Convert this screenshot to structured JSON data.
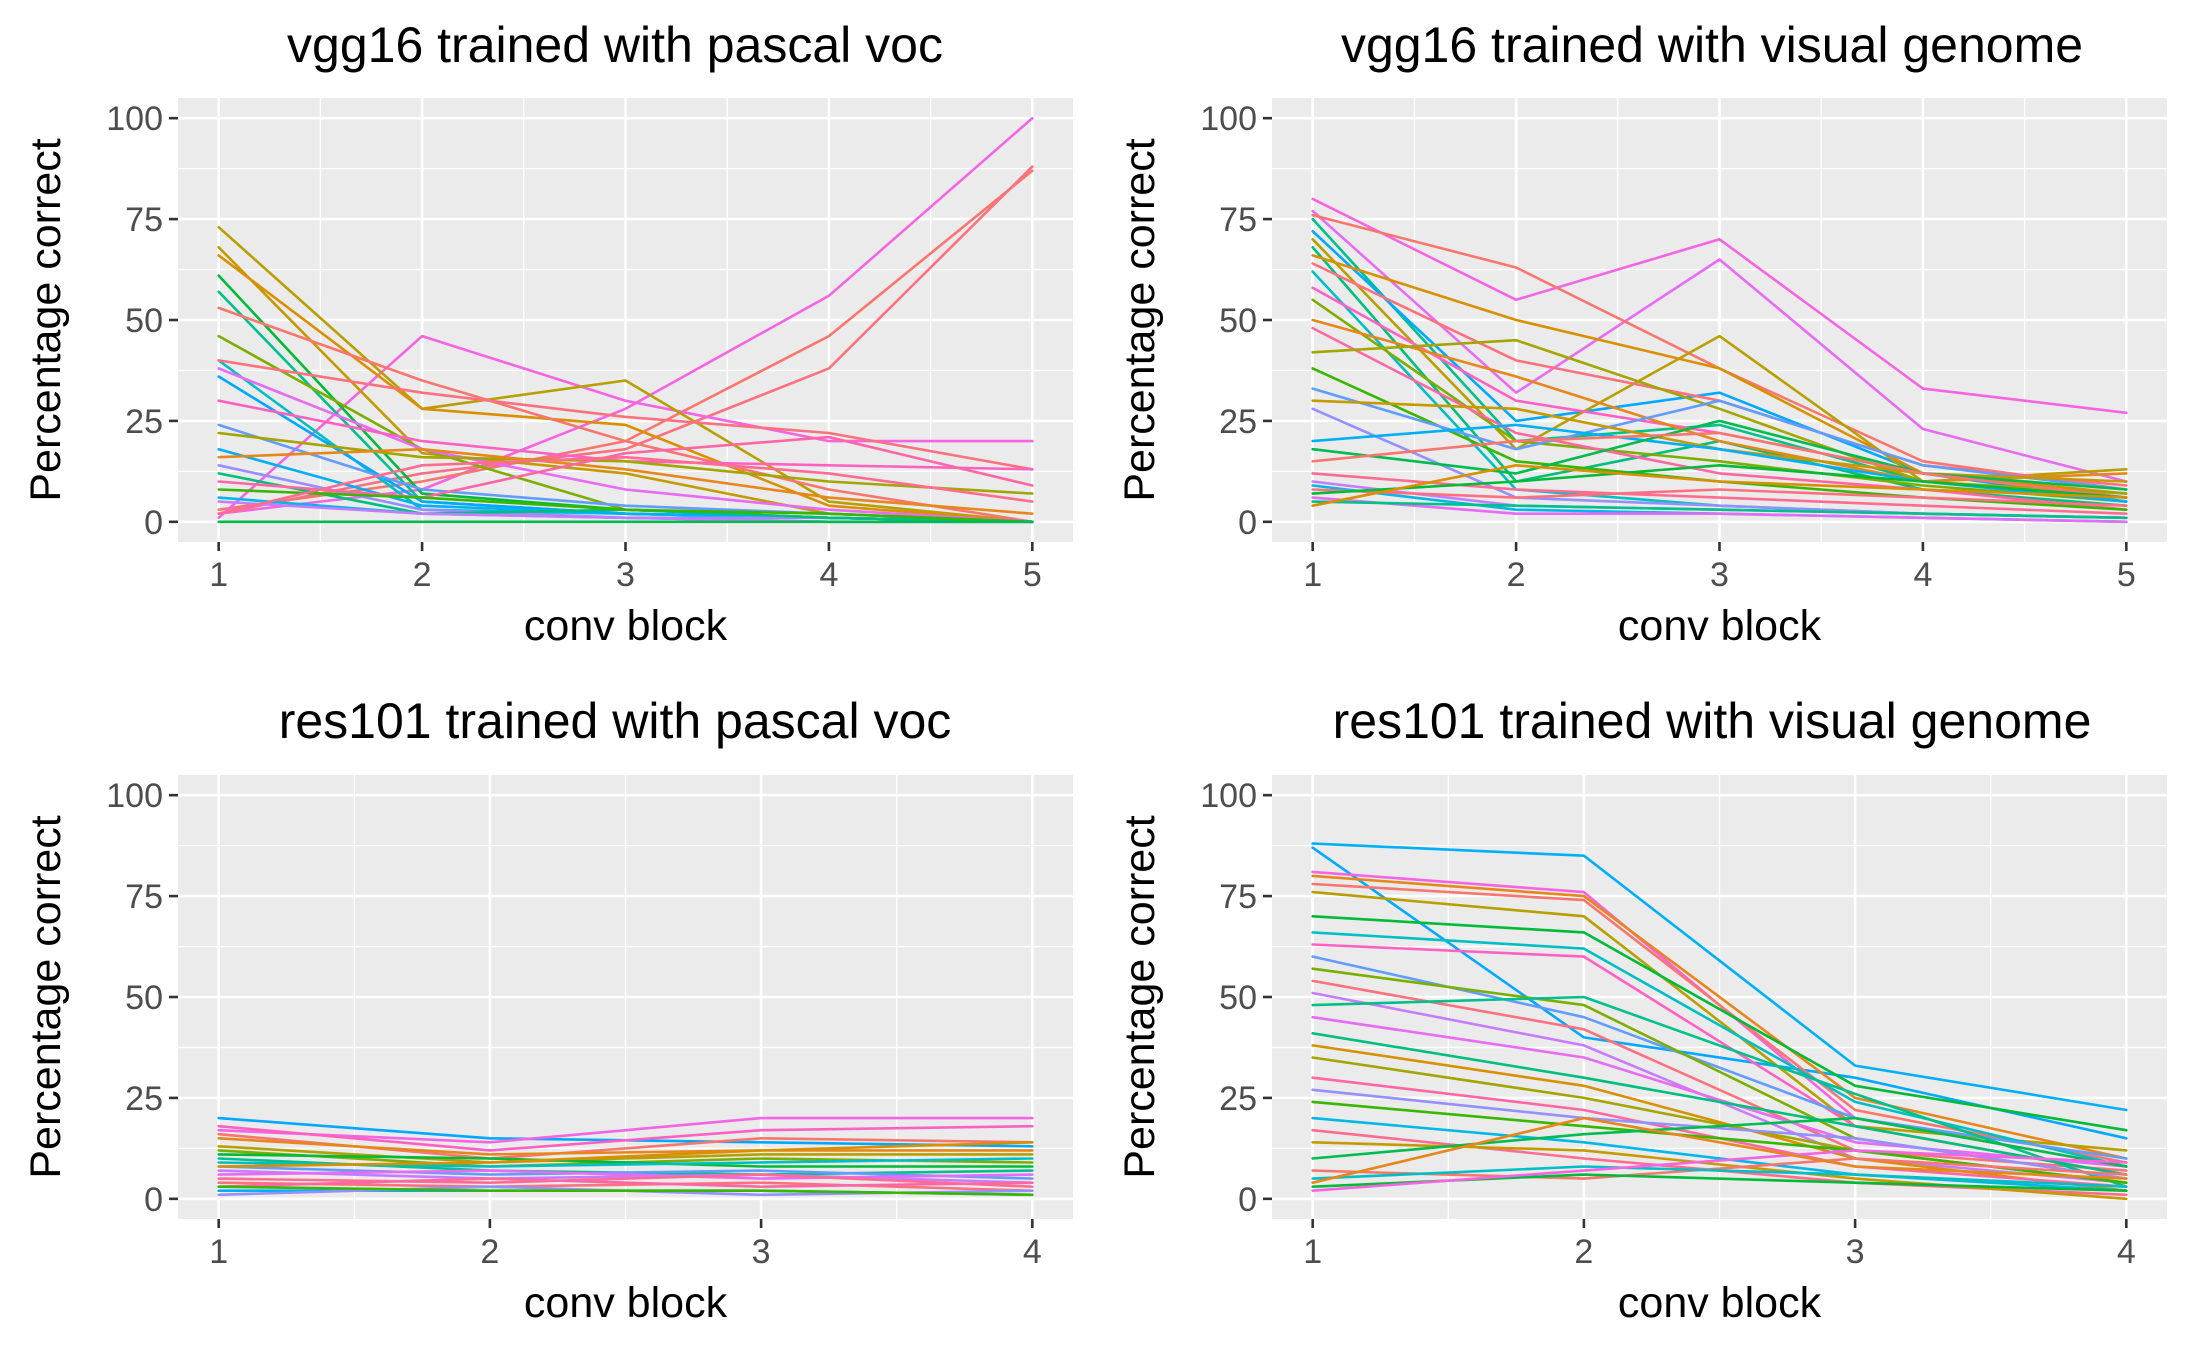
{
  "chart_data": [
    {
      "type": "line",
      "title": "vgg16 trained with pascal voc",
      "xlabel": "conv block",
      "ylabel": "Percentage correct",
      "x": [
        1,
        2,
        3,
        4,
        5
      ],
      "xlim": [
        1,
        5
      ],
      "ylim": [
        0,
        100
      ],
      "yticks": [
        0,
        25,
        50,
        75,
        100
      ],
      "grid": true,
      "legend": "none",
      "series": [
        {
          "color": "#f564e3",
          "values": [
            2,
            8,
            28,
            56,
            100
          ]
        },
        {
          "color": "#f8766d",
          "values": [
            3,
            10,
            20,
            46,
            87
          ]
        },
        {
          "color": "#fc717f",
          "values": [
            2,
            12,
            18,
            38,
            88
          ]
        },
        {
          "color": "#f564e3",
          "values": [
            1,
            46,
            30,
            20,
            20
          ]
        },
        {
          "color": "#b79f00",
          "values": [
            73,
            28,
            35,
            5,
            0
          ]
        },
        {
          "color": "#c49a00",
          "values": [
            68,
            17,
            12,
            2,
            0
          ]
        },
        {
          "color": "#d89000",
          "values": [
            66,
            28,
            24,
            4,
            0
          ]
        },
        {
          "color": "#00ba38",
          "values": [
            61,
            7,
            3,
            1,
            0
          ]
        },
        {
          "color": "#00c08b",
          "values": [
            57,
            5,
            2,
            1,
            0
          ]
        },
        {
          "color": "#f8766d",
          "values": [
            53,
            35,
            20,
            8,
            0
          ]
        },
        {
          "color": "#7cae00",
          "values": [
            46,
            18,
            3,
            1,
            0
          ]
        },
        {
          "color": "#00bfc4",
          "values": [
            40,
            3,
            2,
            1,
            0
          ]
        },
        {
          "color": "#fc717f",
          "values": [
            40,
            32,
            26,
            22,
            13
          ]
        },
        {
          "color": "#e76bf3",
          "values": [
            38,
            18,
            8,
            3,
            0
          ]
        },
        {
          "color": "#00a9ff",
          "values": [
            36,
            5,
            2,
            1,
            0
          ]
        },
        {
          "color": "#ff61c3",
          "values": [
            30,
            20,
            15,
            14,
            13
          ]
        },
        {
          "color": "#619cff",
          "values": [
            24,
            8,
            4,
            2,
            0
          ]
        },
        {
          "color": "#a3a500",
          "values": [
            22,
            16,
            15,
            10,
            7
          ]
        },
        {
          "color": "#00b0f6",
          "values": [
            18,
            4,
            2,
            1,
            0
          ]
        },
        {
          "color": "#e7861b",
          "values": [
            16,
            18,
            13,
            6,
            2
          ]
        },
        {
          "color": "#9590ff",
          "values": [
            14,
            3,
            1,
            1,
            0
          ]
        },
        {
          "color": "#00bf7d",
          "values": [
            12,
            2,
            3,
            1,
            0
          ]
        },
        {
          "color": "#ff67a4",
          "values": [
            10,
            6,
            17,
            21,
            9
          ]
        },
        {
          "color": "#39b600",
          "values": [
            8,
            6,
            3,
            2,
            0
          ]
        },
        {
          "color": "#00b8e7",
          "values": [
            6,
            2,
            1,
            0,
            0
          ]
        },
        {
          "color": "#c77cff",
          "values": [
            5,
            2,
            1,
            0,
            0
          ]
        },
        {
          "color": "#00bb4e",
          "values": [
            0,
            0,
            0,
            0,
            0
          ]
        },
        {
          "color": "#ff6c91",
          "values": [
            2,
            14,
            16,
            12,
            5
          ]
        }
      ]
    },
    {
      "type": "line",
      "title": "vgg16 trained with visual genome",
      "xlabel": "conv block",
      "ylabel": "Percentage correct",
      "x": [
        1,
        2,
        3,
        4,
        5
      ],
      "xlim": [
        1,
        5
      ],
      "ylim": [
        0,
        100
      ],
      "yticks": [
        0,
        25,
        50,
        75,
        100
      ],
      "grid": true,
      "legend": "none",
      "series": [
        {
          "color": "#f564e3",
          "values": [
            80,
            55,
            70,
            33,
            27
          ]
        },
        {
          "color": "#e76bf3",
          "values": [
            77,
            32,
            65,
            23,
            10
          ]
        },
        {
          "color": "#f8766d",
          "values": [
            76,
            63,
            38,
            15,
            8
          ]
        },
        {
          "color": "#00c08b",
          "values": [
            75,
            20,
            24,
            10,
            6
          ]
        },
        {
          "color": "#00a9ff",
          "values": [
            72,
            25,
            32,
            12,
            5
          ]
        },
        {
          "color": "#b79f00",
          "values": [
            70,
            18,
            46,
            10,
            13
          ]
        },
        {
          "color": "#00bf7d",
          "values": [
            68,
            10,
            20,
            8,
            4
          ]
        },
        {
          "color": "#d89000",
          "values": [
            66,
            50,
            38,
            12,
            7
          ]
        },
        {
          "color": "#fc717f",
          "values": [
            64,
            40,
            30,
            14,
            9
          ]
        },
        {
          "color": "#00bfc4",
          "values": [
            62,
            8,
            4,
            2,
            1
          ]
        },
        {
          "color": "#ff61c3",
          "values": [
            58,
            30,
            22,
            12,
            6
          ]
        },
        {
          "color": "#7cae00",
          "values": [
            55,
            20,
            15,
            9,
            5
          ]
        },
        {
          "color": "#e7861b",
          "values": [
            50,
            36,
            20,
            10,
            12
          ]
        },
        {
          "color": "#ff67a4",
          "values": [
            48,
            22,
            12,
            8,
            3
          ]
        },
        {
          "color": "#a3a500",
          "values": [
            42,
            45,
            28,
            10,
            7
          ]
        },
        {
          "color": "#39b600",
          "values": [
            38,
            15,
            10,
            6,
            3
          ]
        },
        {
          "color": "#619cff",
          "values": [
            33,
            18,
            30,
            14,
            8
          ]
        },
        {
          "color": "#c49a00",
          "values": [
            30,
            28,
            18,
            12,
            10
          ]
        },
        {
          "color": "#9590ff",
          "values": [
            28,
            6,
            4,
            2,
            1
          ]
        },
        {
          "color": "#00b0f6",
          "values": [
            20,
            24,
            18,
            10,
            5
          ]
        },
        {
          "color": "#00bb4e",
          "values": [
            18,
            12,
            25,
            12,
            8
          ]
        },
        {
          "color": "#f8766d",
          "values": [
            15,
            20,
            22,
            12,
            6
          ]
        },
        {
          "color": "#ff6c91",
          "values": [
            12,
            8,
            6,
            4,
            2
          ]
        },
        {
          "color": "#c77cff",
          "values": [
            10,
            4,
            3,
            2,
            1
          ]
        },
        {
          "color": "#00b8e7",
          "values": [
            9,
            3,
            2,
            1,
            0
          ]
        },
        {
          "color": "#fc717f",
          "values": [
            8,
            6,
            8,
            6,
            4
          ]
        },
        {
          "color": "#00ba38",
          "values": [
            7,
            10,
            14,
            10,
            6
          ]
        },
        {
          "color": "#e76bf3",
          "values": [
            6,
            2,
            2,
            1,
            0
          ]
        },
        {
          "color": "#00c08b",
          "values": [
            5,
            4,
            3,
            2,
            1
          ]
        },
        {
          "color": "#d89000",
          "values": [
            4,
            14,
            10,
            8,
            6
          ]
        }
      ]
    },
    {
      "type": "line",
      "title": "res101 trained with pascal voc",
      "xlabel": "conv block",
      "ylabel": "Percentage correct",
      "x": [
        1,
        2,
        3,
        4
      ],
      "xlim": [
        1,
        4
      ],
      "ylim": [
        0,
        100
      ],
      "yticks": [
        0,
        25,
        50,
        75,
        100
      ],
      "grid": true,
      "legend": "none",
      "series": [
        {
          "color": "#00a9ff",
          "values": [
            20,
            15,
            14,
            13
          ]
        },
        {
          "color": "#f564e3",
          "values": [
            17,
            14,
            20,
            20
          ]
        },
        {
          "color": "#ff61c3",
          "values": [
            18,
            12,
            17,
            18
          ]
        },
        {
          "color": "#f8766d",
          "values": [
            16,
            10,
            15,
            14
          ]
        },
        {
          "color": "#e7861b",
          "values": [
            15,
            11,
            12,
            12
          ]
        },
        {
          "color": "#b79f00",
          "values": [
            13,
            9,
            11,
            11
          ]
        },
        {
          "color": "#7cae00",
          "values": [
            12,
            8,
            10,
            9
          ]
        },
        {
          "color": "#00ba38",
          "values": [
            11,
            10,
            8,
            8
          ]
        },
        {
          "color": "#00c08b",
          "values": [
            10,
            7,
            6,
            7
          ]
        },
        {
          "color": "#00bfc4",
          "values": [
            9,
            8,
            9,
            10
          ]
        },
        {
          "color": "#619cff",
          "values": [
            8,
            6,
            7,
            5
          ]
        },
        {
          "color": "#c77cff",
          "values": [
            7,
            5,
            6,
            4
          ]
        },
        {
          "color": "#e76bf3",
          "values": [
            6,
            7,
            5,
            6
          ]
        },
        {
          "color": "#ff6c91",
          "values": [
            5,
            4,
            6,
            3
          ]
        },
        {
          "color": "#fc717f",
          "values": [
            4,
            3,
            4,
            2
          ]
        },
        {
          "color": "#ff67a4",
          "values": [
            3,
            5,
            3,
            4
          ]
        },
        {
          "color": "#00b0f6",
          "values": [
            2,
            2,
            2,
            1
          ]
        },
        {
          "color": "#9590ff",
          "values": [
            1,
            3,
            1,
            2
          ]
        },
        {
          "color": "#39b600",
          "values": [
            3,
            2,
            2,
            1
          ]
        },
        {
          "color": "#d89000",
          "values": [
            8,
            9,
            12,
            14
          ]
        }
      ]
    },
    {
      "type": "line",
      "title": "res101 trained with visual genome",
      "xlabel": "conv block",
      "ylabel": "Percentage correct",
      "x": [
        1,
        2,
        3,
        4
      ],
      "xlim": [
        1,
        4
      ],
      "ylim": [
        0,
        100
      ],
      "yticks": [
        0,
        25,
        50,
        75,
        100
      ],
      "grid": true,
      "legend": "none",
      "series": [
        {
          "color": "#00b0f6",
          "values": [
            88,
            85,
            33,
            22
          ]
        },
        {
          "color": "#00a9ff",
          "values": [
            87,
            40,
            30,
            15
          ]
        },
        {
          "color": "#f564e3",
          "values": [
            81,
            76,
            20,
            8
          ]
        },
        {
          "color": "#e7861b",
          "values": [
            80,
            75,
            25,
            10
          ]
        },
        {
          "color": "#f8766d",
          "values": [
            78,
            74,
            22,
            9
          ]
        },
        {
          "color": "#b79f00",
          "values": [
            76,
            70,
            18,
            12
          ]
        },
        {
          "color": "#00ba38",
          "values": [
            70,
            66,
            28,
            17
          ]
        },
        {
          "color": "#00bfc4",
          "values": [
            66,
            62,
            24,
            8
          ]
        },
        {
          "color": "#ff61c3",
          "values": [
            63,
            60,
            18,
            6
          ]
        },
        {
          "color": "#619cff",
          "values": [
            60,
            45,
            20,
            10
          ]
        },
        {
          "color": "#7cae00",
          "values": [
            57,
            48,
            15,
            5
          ]
        },
        {
          "color": "#fc717f",
          "values": [
            54,
            42,
            12,
            7
          ]
        },
        {
          "color": "#c77cff",
          "values": [
            51,
            38,
            10,
            4
          ]
        },
        {
          "color": "#00c08b",
          "values": [
            48,
            50,
            26,
            3
          ]
        },
        {
          "color": "#e76bf3",
          "values": [
            45,
            35,
            14,
            8
          ]
        },
        {
          "color": "#00bf7d",
          "values": [
            41,
            30,
            18,
            6
          ]
        },
        {
          "color": "#d89000",
          "values": [
            38,
            28,
            10,
            2
          ]
        },
        {
          "color": "#a3a500",
          "values": [
            35,
            25,
            12,
            4
          ]
        },
        {
          "color": "#ff67a4",
          "values": [
            30,
            22,
            8,
            3
          ]
        },
        {
          "color": "#9590ff",
          "values": [
            27,
            20,
            15,
            5
          ]
        },
        {
          "color": "#39b600",
          "values": [
            24,
            18,
            12,
            4
          ]
        },
        {
          "color": "#00b8e7",
          "values": [
            20,
            14,
            6,
            2
          ]
        },
        {
          "color": "#ff6c91",
          "values": [
            17,
            10,
            4,
            1
          ]
        },
        {
          "color": "#c49a00",
          "values": [
            14,
            12,
            5,
            0
          ]
        },
        {
          "color": "#00bb4e",
          "values": [
            10,
            16,
            20,
            8
          ]
        },
        {
          "color": "#f8766d",
          "values": [
            7,
            5,
            10,
            6
          ]
        },
        {
          "color": "#00bfc4",
          "values": [
            5,
            8,
            6,
            3
          ]
        },
        {
          "color": "#00ba38",
          "values": [
            3,
            6,
            4,
            2
          ]
        },
        {
          "color": "#f564e3",
          "values": [
            2,
            7,
            12,
            9
          ]
        },
        {
          "color": "#e7861b",
          "values": [
            4,
            20,
            8,
            5
          ]
        }
      ]
    }
  ]
}
